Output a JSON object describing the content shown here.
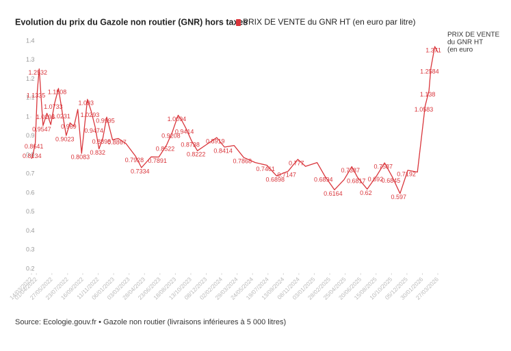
{
  "chart_data": {
    "type": "line",
    "title": "Evolution du prix du Gazole non routier (GNR) hors taxes",
    "source": "Source: Ecologie.gouv.fr • Gazole non routier (livraisons inférieures à 5 000 litres)",
    "x": [
      "2022-03-14",
      "2022-03-21",
      "2022-03-28",
      "2022-04-04",
      "2022-04-11",
      "2022-04-25",
      "2022-05-09",
      "2022-05-23",
      "2022-06-06",
      "2022-06-20",
      "2022-07-04",
      "2022-07-18",
      "2022-08-01",
      "2022-08-15",
      "2022-08-29",
      "2022-09-12",
      "2022-10-03",
      "2022-10-17",
      "2022-10-31",
      "2022-11-14",
      "2022-11-28",
      "2022-12-12",
      "2023-01-02",
      "2023-01-23",
      "2023-02-20",
      "2023-03-27",
      "2023-04-17",
      "2023-05-22",
      "2023-06-19",
      "2023-07-17",
      "2023-08-07",
      "2023-08-28",
      "2023-09-11",
      "2023-09-25",
      "2023-10-16",
      "2023-11-06",
      "2023-12-04",
      "2024-01-15",
      "2024-02-12",
      "2024-03-18",
      "2024-04-22",
      "2024-06-03",
      "2024-07-15",
      "2024-08-19",
      "2024-09-30",
      "2024-11-04",
      "2024-12-02",
      "2025-01-13",
      "2025-02-10",
      "2025-03-17",
      "2025-04-21",
      "2025-05-19",
      "2025-06-09",
      "2025-07-14",
      "2025-08-18",
      "2025-09-15",
      "2025-10-13",
      "2025-11-10",
      "2025-12-08",
      "2026-01-12",
      "2026-02-09",
      "2026-02-23",
      "2026-03-02",
      "2026-03-16",
      "2026-03-27"
    ],
    "series": [
      {
        "name": "PRIX DE VENTE du GNR HT (en euro par litre)",
        "color": "#d9343a",
        "values": [
          0.78,
          0.8134,
          0.8641,
          1.1335,
          1.2532,
          0.9547,
          1.0196,
          0.96,
          1.0733,
          1.1508,
          1.0231,
          0.9023,
          0.969,
          0.95,
          1.04,
          0.8083,
          1.093,
          1.0293,
          0.9474,
          0.832,
          0.8898,
          0.9995,
          0.88,
          0.8867,
          0.86,
          0.7928,
          0.7334,
          0.79,
          0.7891,
          0.8522,
          0.9208,
          1.0094,
          0.98,
          0.9414,
          0.8738,
          0.8222,
          0.85,
          0.8919,
          0.8414,
          0.85,
          0.7868,
          0.76,
          0.7461,
          0.6898,
          0.7147,
          0.777,
          0.74,
          0.76,
          0.6894,
          0.6164,
          0.67,
          0.7387,
          0.6817,
          0.62,
          0.692,
          0.7587,
          0.6845,
          0.597,
          0.7192,
          0.71,
          1.0583,
          1.138,
          1.2584,
          1.371,
          1.34
        ],
        "value_labels": [
          null,
          "0.8134",
          "0.8641",
          "1.1335",
          "1.2532",
          "0.9547",
          "1.0196",
          null,
          "1.0733",
          "1.1508",
          "1.0231",
          "0.9023",
          "0.969",
          null,
          null,
          "0.8083",
          "1.093",
          "1.0293",
          "0.9474",
          "0.832",
          "0.8898",
          "0.9995",
          null,
          "0.8867",
          null,
          "0.7928",
          "0.7334",
          null,
          "0.7891",
          "0.8522",
          "0.9208",
          "1.0094",
          null,
          "0.9414",
          "0.8738",
          "0.8222",
          null,
          "0.8919",
          "0.8414",
          null,
          "0.7868",
          null,
          "0.7461",
          "0.6898",
          "0.7147",
          "0.777",
          null,
          null,
          "0.6894",
          "0.6164",
          null,
          "0.7387",
          "0.6817",
          "0.62",
          "0.692",
          "0.7587",
          "0.6845",
          "0.597",
          "0.7192",
          null,
          "1.0583",
          "1.138",
          "1.2584",
          "1.371",
          null
        ]
      }
    ],
    "ylim": [
      0.2,
      1.4
    ],
    "yticks": [
      0.2,
      0.3,
      0.4,
      0.5,
      0.6,
      0.7,
      0.8,
      0.9,
      1,
      1.1,
      1.2,
      1.3,
      1.4
    ],
    "xlim": [
      "2022-03-14",
      "2026-03-27"
    ],
    "xticks": [
      "14/03/2022",
      "01/04/2022",
      "27/05/2022",
      "23/07/2022",
      "16/09/2022",
      "11/11/2022",
      "06/01/2023",
      "03/03/2023",
      "28/04/2023",
      "23/06/2023",
      "18/08/2023",
      "13/10/2023",
      "08/12/2023",
      "02/02/2024",
      "29/03/2024",
      "24/05/2024",
      "19/07/2024",
      "13/09/2024",
      "08/11/2024",
      "03/01/2025",
      "28/02/2025",
      "25/04/2025",
      "20/06/2025",
      "15/08/2025",
      "10/10/2025",
      "05/12/2025",
      "30/01/2026",
      "27/03/2026"
    ],
    "grid": false
  }
}
